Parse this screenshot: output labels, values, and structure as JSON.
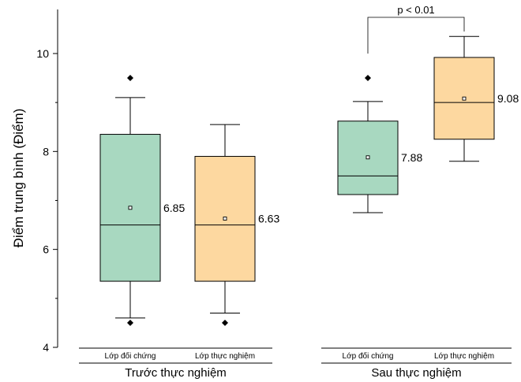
{
  "chart_data": {
    "type": "box",
    "ylabel": "Điểm trung bình (Điểm)",
    "ylim": [
      4,
      10.9
    ],
    "yticks": [
      4,
      6,
      8,
      10
    ],
    "grid": false,
    "groups": [
      {
        "name": "Trước thực nghiệm",
        "boxes": [
          {
            "category": "Lớp đối chứng",
            "color": "#a8d8c0",
            "whisker_low": 4.6,
            "q1": 5.35,
            "median": 6.5,
            "q3": 8.35,
            "whisker_high": 9.1,
            "mean": 6.85,
            "mean_label": "6.85",
            "outliers": [
              9.5,
              4.5
            ]
          },
          {
            "category": "Lớp thực nghiệm",
            "color": "#fdd8a0",
            "whisker_low": 4.7,
            "q1": 5.35,
            "median": 6.5,
            "q3": 7.9,
            "whisker_high": 8.55,
            "mean": 6.63,
            "mean_label": "6.63",
            "outliers": [
              4.5
            ]
          }
        ]
      },
      {
        "name": "Sau thực nghiệm",
        "boxes": [
          {
            "category": "Lớp đối chứng",
            "color": "#a8d8c0",
            "whisker_low": 6.75,
            "q1": 7.12,
            "median": 7.5,
            "q3": 8.62,
            "whisker_high": 9.02,
            "mean": 7.88,
            "mean_label": "7.88",
            "outliers": [
              9.5
            ]
          },
          {
            "category": "Lớp thực nghiệm",
            "color": "#fdd8a0",
            "whisker_low": 7.8,
            "q1": 8.25,
            "median": 9.0,
            "q3": 9.92,
            "whisker_high": 10.35,
            "mean": 9.08,
            "mean_label": "9.08",
            "outliers": []
          }
        ]
      }
    ],
    "significance": {
      "label": "p < 0.01",
      "group": 1,
      "from_box": 0,
      "to_box": 1
    }
  }
}
